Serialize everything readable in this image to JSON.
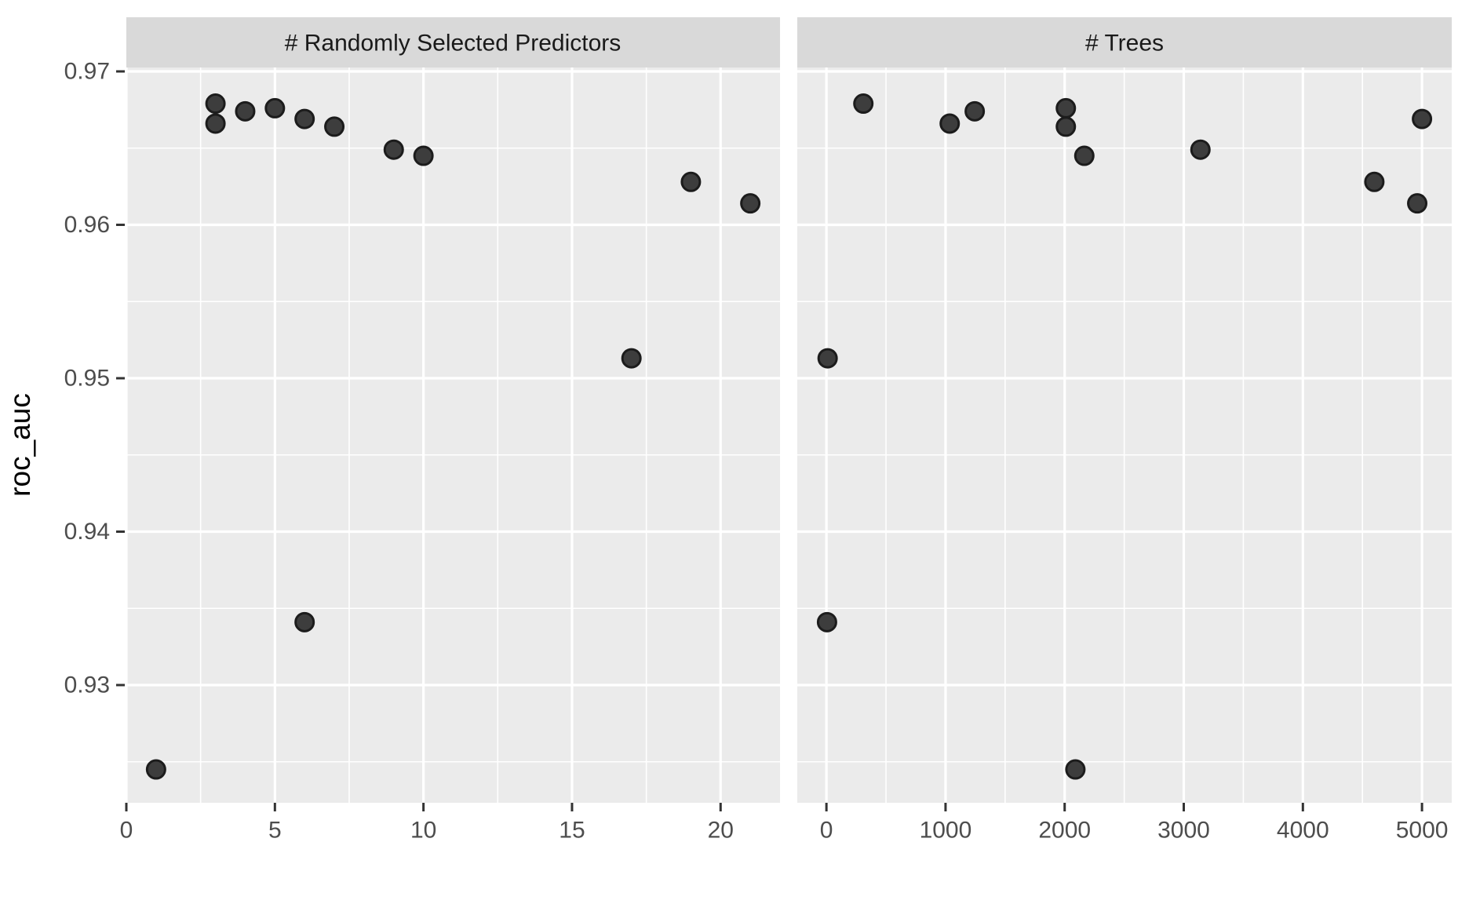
{
  "chart_data": {
    "type": "scatter",
    "title": "",
    "ylabel": "roc_auc",
    "legend": "none",
    "grid": "on",
    "theme": {
      "panel_bg": "#EBEBEB",
      "strip_bg": "#D9D9D9",
      "grid_color": "#FFFFFF",
      "point_fill": "#3D3D3D",
      "point_stroke": "#1C1C1C",
      "tick_color": "#333333",
      "axis_text_color": "#4D4D4D",
      "strip_text_color": "#1A1A1A",
      "axis_title_color": "#000000"
    },
    "y_axis": {
      "domain": [
        0.922327,
        0.970256
      ],
      "ticks": [
        0.93,
        0.94,
        0.95,
        0.96,
        0.97
      ],
      "tick_labels": [
        "0.93",
        "0.94",
        "0.95",
        "0.96",
        "0.97"
      ],
      "minor_ticks": [
        0.925,
        0.935,
        0.945,
        0.955,
        0.965
      ]
    },
    "facets": [
      {
        "label": "# Randomly Selected Predictors",
        "x_domain": [
          0,
          22
        ],
        "x_ticks": [
          0,
          5,
          10,
          15,
          20
        ],
        "x_tick_labels": [
          "0",
          "5",
          "10",
          "15",
          "20"
        ],
        "x_minor_ticks": [
          2.5,
          7.5,
          12.5,
          17.5
        ],
        "points": [
          {
            "x": 1,
            "y": 0.9245
          },
          {
            "x": 3,
            "y": 0.9679
          },
          {
            "x": 3,
            "y": 0.9666
          },
          {
            "x": 4,
            "y": 0.9674
          },
          {
            "x": 5,
            "y": 0.9676
          },
          {
            "x": 6,
            "y": 0.9341
          },
          {
            "x": 6,
            "y": 0.9669
          },
          {
            "x": 7,
            "y": 0.9664
          },
          {
            "x": 9,
            "y": 0.9649
          },
          {
            "x": 10,
            "y": 0.9645
          },
          {
            "x": 17,
            "y": 0.9513
          },
          {
            "x": 19,
            "y": 0.9628
          },
          {
            "x": 21,
            "y": 0.9614
          }
        ]
      },
      {
        "label": "# Trees",
        "x_domain": [
          -244.75,
          5249.75
        ],
        "x_ticks": [
          0,
          1000,
          2000,
          3000,
          4000,
          5000
        ],
        "x_tick_labels": [
          "0",
          "1000",
          "2000",
          "3000",
          "4000",
          "5000"
        ],
        "x_minor_ticks": [
          500,
          1500,
          2500,
          3500,
          4500
        ],
        "points": [
          {
            "x": 5,
            "y": 0.9341
          },
          {
            "x": 10,
            "y": 0.9513
          },
          {
            "x": 310,
            "y": 0.9679
          },
          {
            "x": 1035,
            "y": 0.9666
          },
          {
            "x": 1245,
            "y": 0.9674
          },
          {
            "x": 2010,
            "y": 0.9676
          },
          {
            "x": 2010,
            "y": 0.9664
          },
          {
            "x": 2090,
            "y": 0.9245
          },
          {
            "x": 2165,
            "y": 0.9645
          },
          {
            "x": 3140,
            "y": 0.9649
          },
          {
            "x": 4600,
            "y": 0.9628
          },
          {
            "x": 4960,
            "y": 0.9614
          },
          {
            "x": 5000,
            "y": 0.9669
          }
        ]
      }
    ]
  }
}
